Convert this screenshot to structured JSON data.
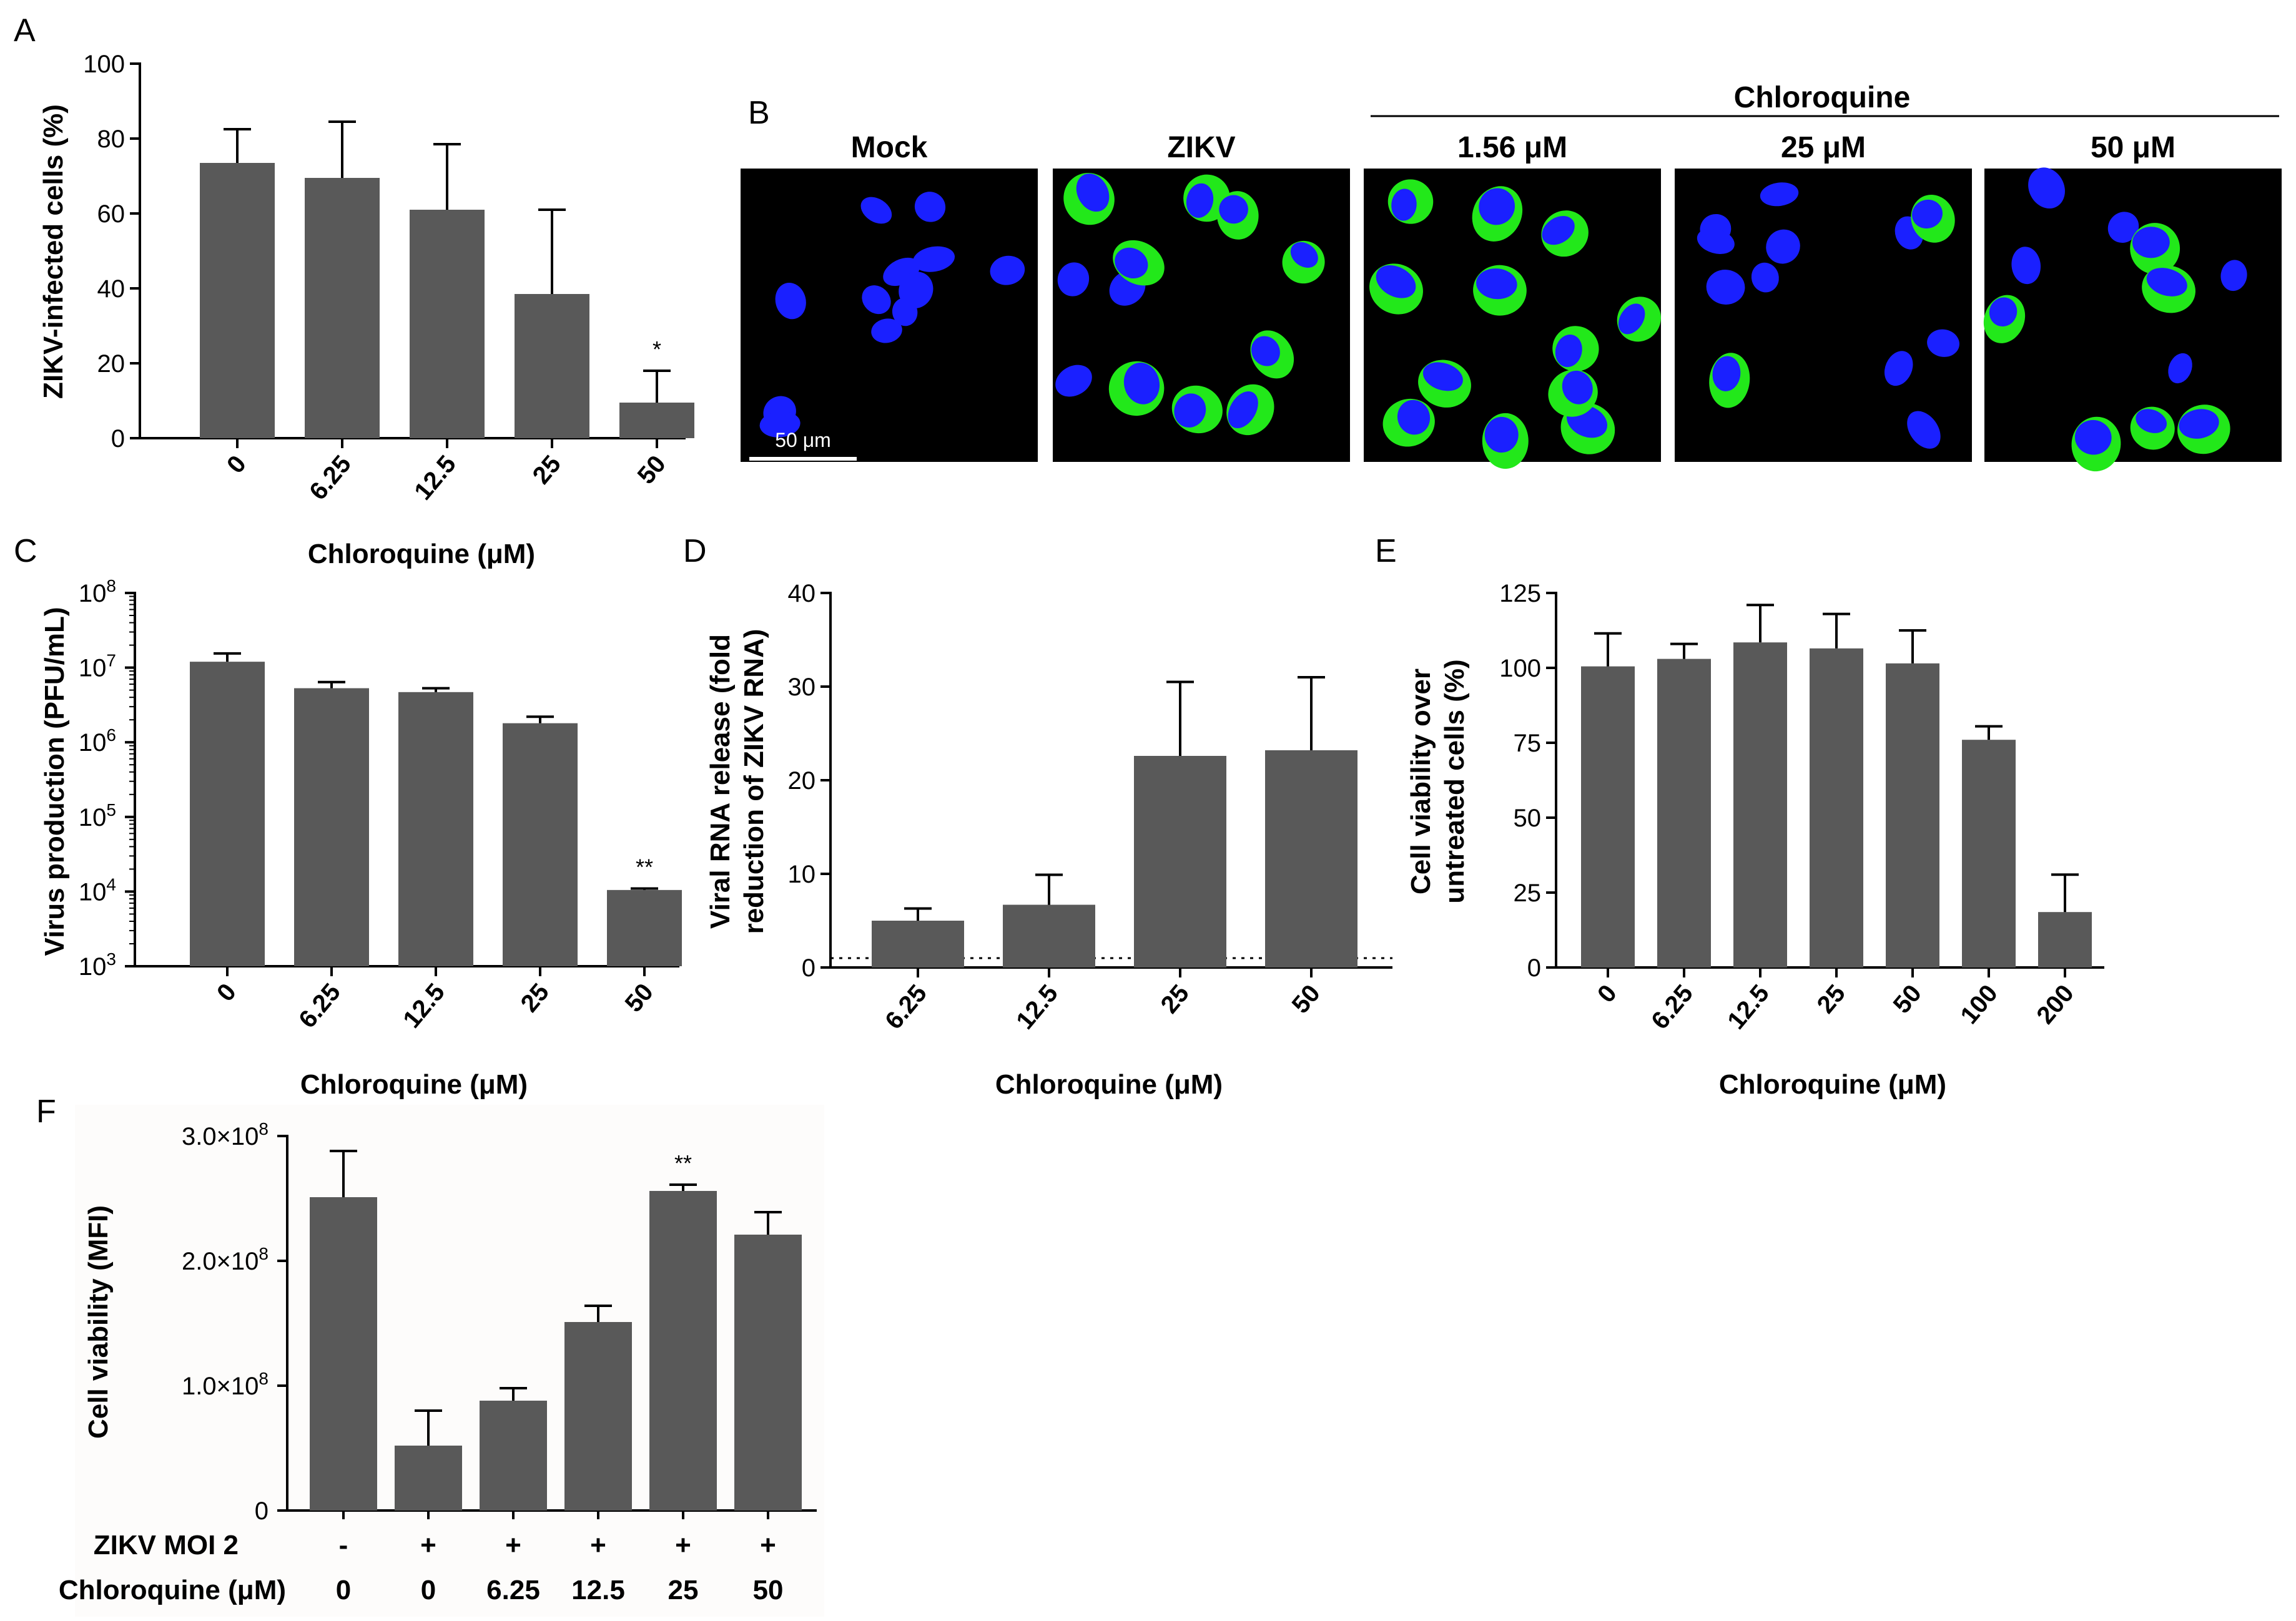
{
  "panel_labels": [
    "A",
    "B",
    "C",
    "D",
    "E",
    "F"
  ],
  "colors": {
    "bar": "#595959",
    "panel_f_bg": "#fdfcfb",
    "nucleus": "#1a20ff",
    "zikv": "#22e81a",
    "micro_bg": "#000000"
  },
  "microscopy": {
    "group_label": "Chloroquine",
    "panels": [
      {
        "label": "Mock",
        "infection": "none"
      },
      {
        "label": "ZIKV",
        "infection": "high"
      },
      {
        "label": "1.56 μM",
        "infection": "high"
      },
      {
        "label": "25 μM",
        "infection": "low"
      },
      {
        "label": "50 μM",
        "infection": "very-low"
      }
    ],
    "scale_bar_label": "50 μm"
  },
  "chart_data": [
    {
      "panel": "A",
      "type": "bar",
      "categories": [
        "0",
        "6.25",
        "12.5",
        "25",
        "50"
      ],
      "values": [
        73.5,
        69.5,
        61,
        38.5,
        9.5
      ],
      "errors": [
        9,
        15,
        17.5,
        22.5,
        8.5
      ],
      "annotations": [
        "",
        "",
        "",
        "",
        "*"
      ],
      "ylabel": "ZIKV-infected cells (%)",
      "xlabel": "Chloroquine (μM)",
      "ylim": [
        0,
        100
      ],
      "yticks": [
        "0",
        "20",
        "40",
        "60",
        "80",
        "100"
      ],
      "scale": "linear"
    },
    {
      "panel": "C",
      "type": "bar",
      "categories": [
        "0",
        "6.25",
        "12.5",
        "25",
        "50"
      ],
      "values": [
        12000000,
        5300000,
        4700000,
        1800000,
        10500
      ],
      "errors_upper": [
        15500000,
        6400000,
        5300000,
        2200000,
        11000
      ],
      "annotations": [
        "",
        "",
        "",
        "",
        "**"
      ],
      "ylabel": "Virus production (PFU/mL)",
      "xlabel": "Chloroquine (μM)",
      "ylim": [
        1000,
        100000000
      ],
      "yticks": [
        {
          "base": "10",
          "exp": "3"
        },
        {
          "base": "10",
          "exp": "4"
        },
        {
          "base": "10",
          "exp": "5"
        },
        {
          "base": "10",
          "exp": "6"
        },
        {
          "base": "10",
          "exp": "7"
        },
        {
          "base": "10",
          "exp": "8"
        }
      ],
      "scale": "log"
    },
    {
      "panel": "D",
      "type": "bar",
      "categories": [
        "6.25",
        "12.5",
        "25",
        "50"
      ],
      "values": [
        5,
        6.7,
        22.6,
        23.2
      ],
      "errors": [
        1.3,
        3.2,
        7.9,
        7.8
      ],
      "reference_line": 1,
      "ylabel": "Viral RNA release (fold reduction of ZIKV RNA)",
      "ylabel_lines": [
        "Viral RNA release (fold",
        "reduction of ZIKV RNA)"
      ],
      "xlabel": "Chloroquine (μM)",
      "ylim": [
        0,
        40
      ],
      "yticks": [
        "0",
        "10",
        "20",
        "30",
        "40"
      ],
      "scale": "linear"
    },
    {
      "panel": "E",
      "type": "bar",
      "categories": [
        "0",
        "6.25",
        "12.5",
        "25",
        "50",
        "100",
        "200"
      ],
      "values": [
        100.5,
        103,
        108.5,
        106.5,
        101.5,
        76,
        18.5
      ],
      "errors": [
        11,
        5,
        12.5,
        11.5,
        11,
        4.5,
        12.5
      ],
      "ylabel": "Cell viability over untreated cells (%)",
      "ylabel_lines": [
        "Cell viability over",
        "untreated cells (%)"
      ],
      "xlabel": "Chloroquine (μM)",
      "ylim": [
        0,
        125
      ],
      "yticks": [
        "0",
        "25",
        "50",
        "75",
        "100",
        "125"
      ],
      "scale": "linear"
    },
    {
      "panel": "F",
      "type": "bar",
      "categories": [
        "0",
        "0",
        "6.25",
        "12.5",
        "25",
        "50"
      ],
      "values": [
        251000000,
        52000000,
        88000000,
        151000000,
        256000000,
        221000000
      ],
      "errors": [
        37000000,
        28000000,
        10000000,
        13000000,
        5000000,
        18000000
      ],
      "annotations": [
        "",
        "",
        "",
        "",
        "**",
        ""
      ],
      "ylabel": "Cell viability (MFI)",
      "ylim": [
        0,
        300000000
      ],
      "yticks": [
        {
          "mant": "0",
          "exp": ""
        },
        {
          "mant": "1.0×10",
          "exp": "8"
        },
        {
          "mant": "2.0×10",
          "exp": "8"
        },
        {
          "mant": "3.0×10",
          "exp": "8"
        }
      ],
      "scale": "linear",
      "row_labels": [
        "ZIKV MOI 2",
        "Chloroquine (μM)"
      ],
      "row_zikv": [
        "-",
        "+",
        "+",
        "+",
        "+",
        "+"
      ],
      "row_chloroquine": [
        "0",
        "0",
        "6.25",
        "12.5",
        "25",
        "50"
      ]
    }
  ]
}
